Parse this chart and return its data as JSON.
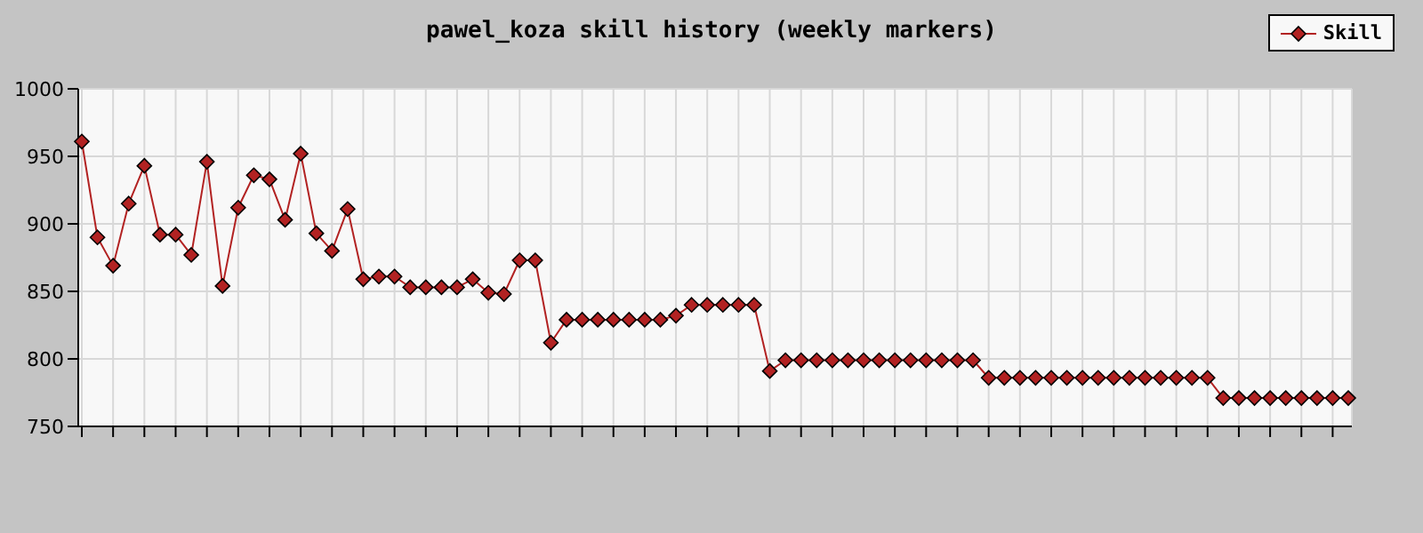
{
  "chart_data": {
    "type": "line",
    "title": "pawel_koza skill history (weekly markers)",
    "categories": [
      null,
      null,
      null,
      null,
      null,
      null,
      null,
      null,
      null,
      null,
      null,
      null,
      null,
      null,
      null,
      null,
      null,
      null,
      null,
      null,
      null,
      null,
      null,
      null,
      null,
      null,
      null,
      null,
      null,
      null,
      null,
      null,
      null,
      null,
      null,
      null,
      null,
      null,
      null,
      null,
      null,
      null,
      null,
      null,
      null,
      null,
      null,
      null,
      null,
      null,
      null,
      null,
      null,
      null,
      null,
      null,
      null,
      null,
      null,
      null,
      null,
      null,
      null,
      null,
      null,
      null,
      null,
      null,
      null,
      null,
      null,
      null,
      null,
      null,
      null,
      null,
      null,
      null,
      null,
      null,
      null,
      null
    ],
    "series": [
      {
        "name": "Skill",
        "color": "#b22222",
        "values": [
          961,
          890,
          869,
          915,
          943,
          892,
          892,
          877,
          946,
          854,
          912,
          936,
          933,
          903,
          952,
          893,
          880,
          911,
          859,
          861,
          861,
          853,
          853,
          853,
          853,
          859,
          849,
          848,
          873,
          873,
          812,
          829,
          829,
          829,
          829,
          829,
          829,
          829,
          832,
          840,
          840,
          840,
          840,
          840,
          791,
          799,
          799,
          799,
          799,
          799,
          799,
          799,
          799,
          799,
          799,
          799,
          799,
          799,
          786,
          786,
          786,
          786,
          786,
          786,
          786,
          786,
          786,
          786,
          786,
          786,
          786,
          786,
          786,
          771,
          771,
          771,
          771,
          771,
          771,
          771,
          771,
          771
        ]
      }
    ],
    "ylim": [
      750,
      1000
    ],
    "yticks": [
      750,
      800,
      850,
      900,
      950,
      1000
    ],
    "grid": true,
    "legend": "top right",
    "marker": "diamond",
    "line_style": "solid"
  }
}
